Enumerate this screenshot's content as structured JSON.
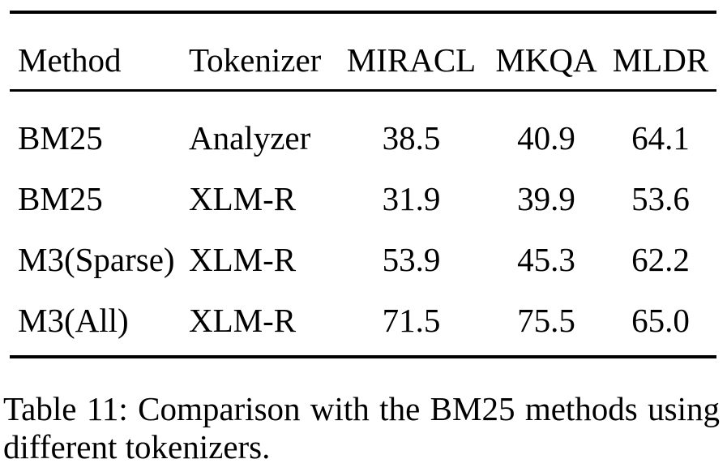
{
  "table": {
    "headers": {
      "method": "Method",
      "tokenizer": "Tokenizer",
      "miracl": "MIRACL",
      "mkqa": "MKQA",
      "mldr": "MLDR"
    },
    "rows": [
      {
        "method": "BM25",
        "tokenizer": "Analyzer",
        "miracl": "38.5",
        "mkqa": "40.9",
        "mldr": "64.1"
      },
      {
        "method": "BM25",
        "tokenizer": "XLM-R",
        "miracl": "31.9",
        "mkqa": "39.9",
        "mldr": "53.6"
      },
      {
        "method": "M3(Sparse)",
        "tokenizer": "XLM-R",
        "miracl": "53.9",
        "mkqa": "45.3",
        "mldr": "62.2"
      },
      {
        "method": "M3(All)",
        "tokenizer": "XLM-R",
        "miracl": "71.5",
        "mkqa": "75.5",
        "mldr": "65.0"
      }
    ]
  },
  "caption": {
    "line1": "Table 11: Comparison with the BM25 methods using",
    "line2": "different tokenizers."
  },
  "colors": {
    "text": "#000000",
    "rule": "#000000",
    "background": "#ffffff"
  }
}
